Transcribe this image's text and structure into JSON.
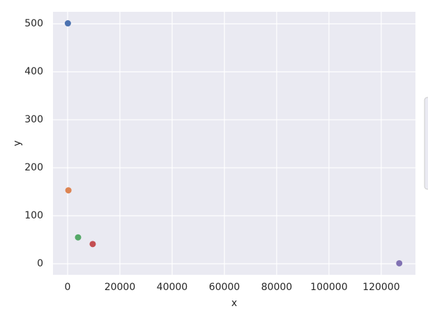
{
  "chart_data": {
    "type": "scatter",
    "x_label": "x",
    "y_label": "y",
    "x": [
      100,
      300,
      4000,
      9600,
      126900
    ],
    "values": [
      501,
      153,
      55,
      41,
      1
    ],
    "colors": [
      "#4c72b0",
      "#dd8452",
      "#55a868",
      "#c44e52",
      "#8172b3"
    ],
    "xlim": [
      -5600,
      133100
    ],
    "ylim": [
      -23,
      525
    ],
    "xticks": [
      0,
      20000,
      40000,
      60000,
      80000,
      100000,
      120000
    ],
    "yticks": [
      0,
      100,
      200,
      300,
      400,
      500
    ],
    "grid": true,
    "background": "#eaeaf2"
  }
}
